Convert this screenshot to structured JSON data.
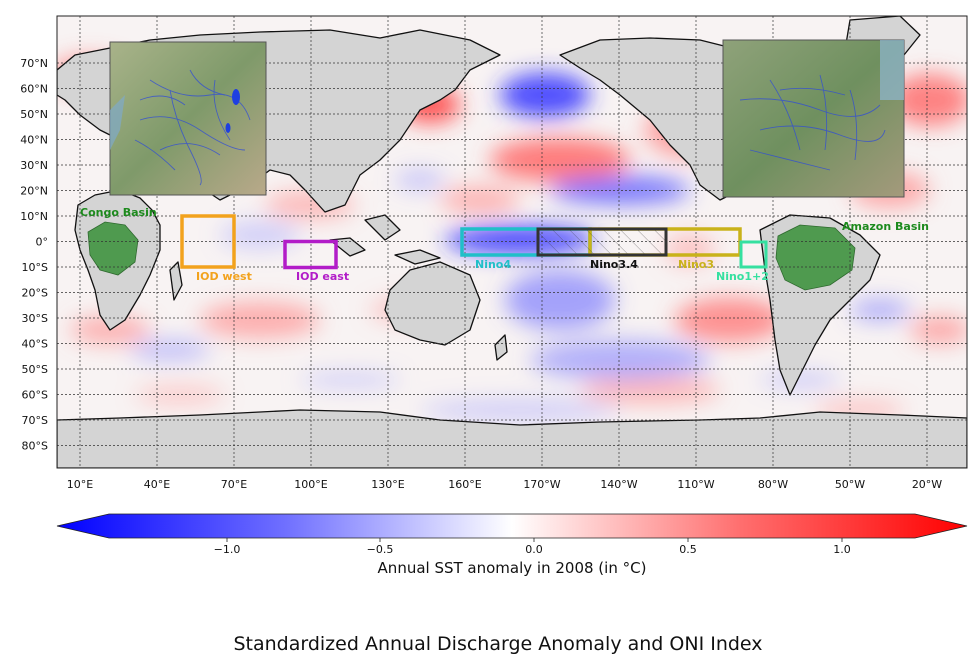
{
  "map": {
    "lat_ticks": [
      "70°N",
      "60°N",
      "50°N",
      "40°N",
      "30°N",
      "20°N",
      "10°N",
      "0°",
      "10°S",
      "20°S",
      "30°S",
      "40°S",
      "50°S",
      "60°S",
      "70°S",
      "80°S"
    ],
    "lon_ticks": [
      "10°E",
      "40°E",
      "70°E",
      "100°E",
      "130°E",
      "160°E",
      "170°W",
      "140°W",
      "110°W",
      "80°W",
      "50°W",
      "20°W"
    ]
  },
  "regions": [
    {
      "key": "iod-west",
      "label": "IOD west",
      "color": "#f2a21c"
    },
    {
      "key": "iod-east",
      "label": "IOD east",
      "color": "#b21cc8"
    },
    {
      "key": "nino4",
      "label": "Nino4",
      "color": "#20bfc8"
    },
    {
      "key": "nino34",
      "label": "Nino3.4",
      "color": "#111111"
    },
    {
      "key": "nino3",
      "label": "Nino3",
      "color": "#c9b21a"
    },
    {
      "key": "nino12",
      "label": "Nino1+2",
      "color": "#35e0a0"
    }
  ],
  "basins": [
    {
      "key": "congo",
      "label": "Congo Basin",
      "color": "#1d8a1d"
    },
    {
      "key": "amazon",
      "label": "Amazon Basin",
      "color": "#1d8a1d"
    }
  ],
  "colorbar": {
    "ticks": [
      "−1.0",
      "−0.5",
      "0.0",
      "0.5",
      "1.0"
    ],
    "label": "Annual SST anomaly in 2008 (in °C)",
    "range": [
      -1.5,
      1.5
    ],
    "colormap": "bwr"
  },
  "bottom_title": "Standardized Annual Discharge Anomaly and ONI Index"
}
